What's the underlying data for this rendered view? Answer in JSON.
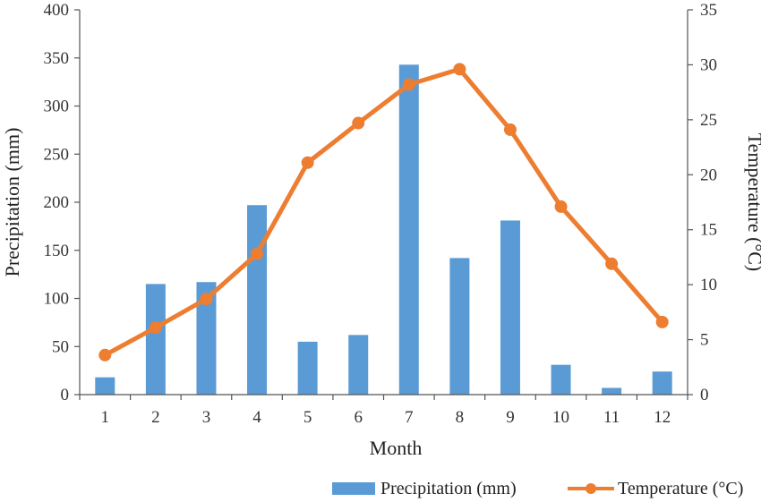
{
  "chart_data": {
    "type": "bar+line",
    "xlabel": "Month",
    "categories": [
      "1",
      "2",
      "3",
      "4",
      "5",
      "6",
      "7",
      "8",
      "9",
      "10",
      "11",
      "12"
    ],
    "series": [
      {
        "name": "Precipitation (mm)",
        "type": "bar",
        "axis": "left",
        "color": "#5b9bd5",
        "values": [
          18,
          115,
          117,
          197,
          55,
          62,
          343,
          142,
          181,
          31,
          7,
          24
        ]
      },
      {
        "name": "Temperature (°C)",
        "type": "line",
        "axis": "right",
        "color": "#ed7d31",
        "values": [
          3.6,
          6.1,
          8.7,
          12.8,
          21.1,
          24.7,
          28.2,
          29.6,
          24.1,
          17.1,
          11.9,
          6.6
        ]
      }
    ],
    "y_left": {
      "label": "Precipitation (mm)",
      "lim": [
        0,
        400
      ],
      "ticks": [
        "0",
        "50",
        "100",
        "150",
        "200",
        "250",
        "300",
        "350",
        "400"
      ]
    },
    "y_right": {
      "label": "Temperature (°C)",
      "lim": [
        0,
        35
      ],
      "ticks": [
        "0",
        "5",
        "10",
        "15",
        "20",
        "25",
        "30",
        "35"
      ]
    },
    "grid": false,
    "legend_position": "bottom-right"
  }
}
